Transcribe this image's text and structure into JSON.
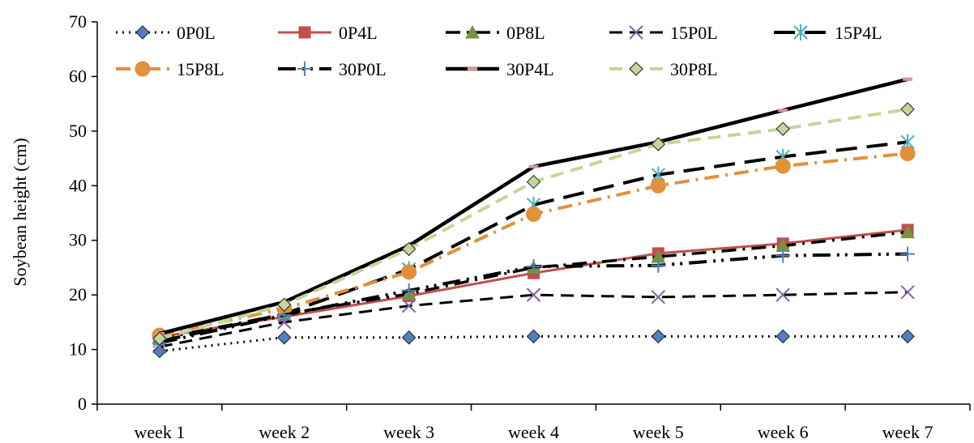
{
  "chart_data": {
    "type": "line",
    "ylabel": "Soybean height (cm)",
    "xlabel": "",
    "ylim": [
      0,
      70
    ],
    "yticks": [
      0,
      10,
      20,
      30,
      40,
      50,
      60,
      70
    ],
    "grid": false,
    "legend_position": "top",
    "categories": [
      "week 1",
      "week 2",
      "week 3",
      "week 4",
      "week 5",
      "week 6",
      "week 7"
    ],
    "series": [
      {
        "name": "0P0L",
        "values": [
          9.7,
          12.2,
          12.2,
          12.4,
          12.4,
          12.4,
          12.4
        ],
        "color": "#000000",
        "dash": "dot",
        "marker": "diamond",
        "marker_color": "#4f81bd",
        "width": 3
      },
      {
        "name": "0P4L",
        "values": [
          12.3,
          16.0,
          19.8,
          24.0,
          27.6,
          29.4,
          31.9
        ],
        "color": "#c0504d",
        "dash": "solid",
        "marker": "square",
        "marker_color": "#c0504d",
        "width": 3
      },
      {
        "name": "0P8L",
        "values": [
          11.9,
          16.5,
          20.2,
          25.0,
          27.0,
          29.0,
          31.5
        ],
        "color": "#000000",
        "dash": "dashdot",
        "marker": "triangle",
        "marker_color": "#77933c",
        "width": 3.5
      },
      {
        "name": "15P0L",
        "values": [
          10.5,
          15.0,
          18.0,
          20.0,
          19.6,
          20.0,
          20.5
        ],
        "color": "#000000",
        "dash": "dash",
        "marker": "x",
        "marker_color": "#8064a2",
        "width": 3
      },
      {
        "name": "15P4L",
        "values": [
          11.5,
          16.5,
          24.7,
          36.5,
          42.0,
          45.3,
          48.0
        ],
        "color": "#000000",
        "dash": "longdash",
        "marker": "asterisk",
        "marker_color": "#4bacc6",
        "width": 4
      },
      {
        "name": "15P8L",
        "values": [
          12.6,
          17.5,
          24.2,
          34.8,
          40.0,
          43.6,
          45.9
        ],
        "color": "#e0913a",
        "dash": "dashdot",
        "marker": "circle",
        "marker_color": "#e0913a",
        "width": 4
      },
      {
        "name": "30P0L",
        "values": [
          11.2,
          16.3,
          20.8,
          25.2,
          25.4,
          27.2,
          27.5
        ],
        "color": "#000000",
        "dash": "dashdotdot",
        "marker": "plus",
        "marker_color": "#4f81bd",
        "width": 4
      },
      {
        "name": "30P4L",
        "values": [
          12.9,
          18.7,
          29.0,
          43.5,
          48.0,
          53.8,
          59.5
        ],
        "color": "#000000",
        "dash": "solid",
        "marker": "dashmark",
        "marker_color": "#d99694",
        "width": 4.5
      },
      {
        "name": "30P8L",
        "values": [
          12.0,
          18.2,
          28.4,
          40.7,
          47.6,
          50.4,
          54.0
        ],
        "color": "#c3d69b",
        "dash": "dash",
        "marker": "diamond",
        "marker_color": "#c3d69b",
        "width": 4
      }
    ]
  }
}
